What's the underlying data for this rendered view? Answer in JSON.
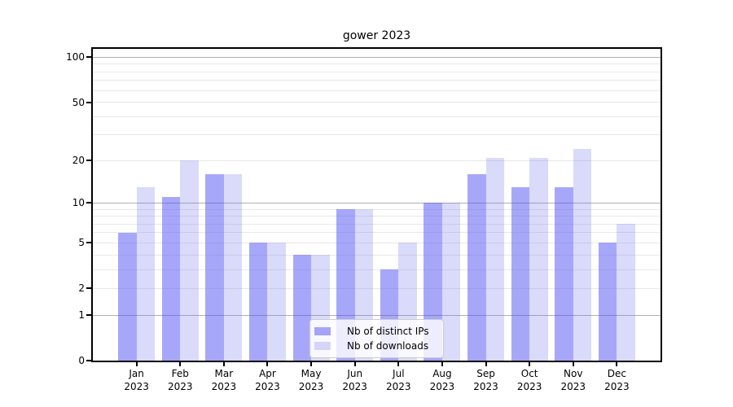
{
  "title": "gower 2023",
  "colors": {
    "series_dark": "rgba(79,79,245,0.5)",
    "series_light": "rgba(107,107,235,0.25)",
    "major_grid": "#b0b0b0",
    "minor_grid": "#e8e8e8",
    "axis": "#000000"
  },
  "chart_data": {
    "type": "bar",
    "title": "gower 2023",
    "categories": [
      "Jan",
      "Feb",
      "Mar",
      "Apr",
      "May",
      "Jun",
      "Jul",
      "Aug",
      "Sep",
      "Oct",
      "Nov",
      "Dec"
    ],
    "category_year": "2023",
    "series": [
      {
        "name": "Nb of distinct IPs",
        "color": "rgba(79,79,245,0.5)",
        "values": [
          6,
          11,
          16,
          5,
          4,
          9,
          3,
          10,
          16,
          13,
          13,
          5
        ]
      },
      {
        "name": "Nb of downloads",
        "color": "rgba(107,107,235,0.25)",
        "values": [
          13,
          20,
          16,
          5,
          4,
          9,
          5,
          10,
          21,
          21,
          24,
          7
        ]
      }
    ],
    "xlabel": "",
    "ylabel": "",
    "yscale": "log1p",
    "ylim": [
      0,
      114
    ],
    "yticks": [
      0,
      1,
      2,
      5,
      10,
      20,
      50,
      100
    ],
    "gridlines": {
      "major": [
        1,
        10,
        100
      ],
      "minor": [
        2,
        3,
        4,
        5,
        6,
        7,
        8,
        9,
        20,
        30,
        40,
        50,
        60,
        70,
        80,
        90
      ]
    },
    "grid": "horizontal",
    "legend_position": "lower center"
  }
}
